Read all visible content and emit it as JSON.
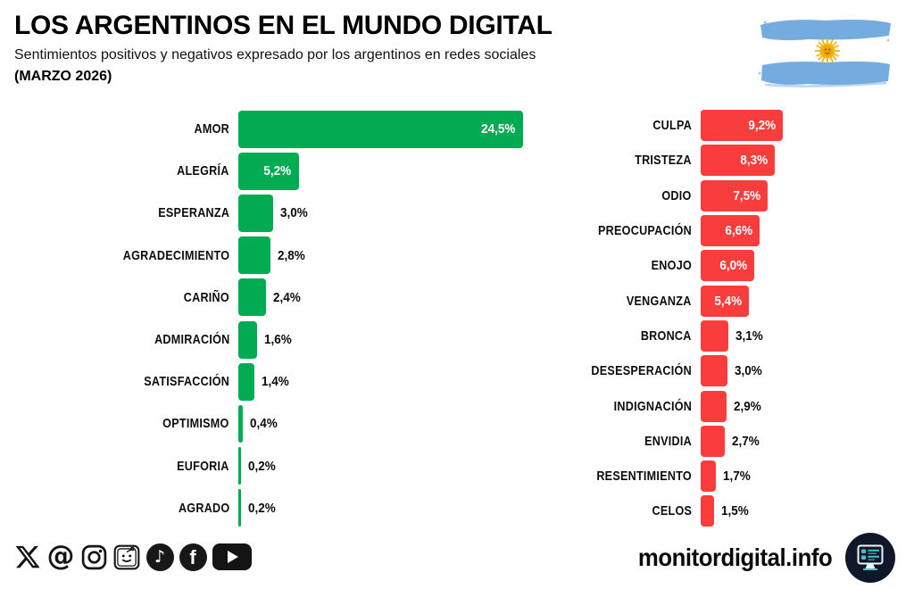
{
  "header": {
    "title": "LOS ARGENTINOS EN EL MUNDO DIGITAL",
    "subtitle": "Sentimientos positivos y negativos expresado por los argentinos en redes sociales",
    "period": "(MARZO 2026)"
  },
  "flag": {
    "name": "argentina-flag",
    "colors": {
      "celeste": "#74ACDF",
      "sun": "#F5B50F"
    }
  },
  "chart_data": [
    {
      "type": "bar",
      "orientation": "horizontal",
      "series_name": "Sentimientos positivos",
      "color": "#00AB52",
      "categories": [
        "AMOR",
        "ALEGRÍA",
        "ESPERANZA",
        "AGRADECIMIENTO",
        "CARIÑO",
        "ADMIRACIÓN",
        "SATISFACCIÓN",
        "OPTIMISMO",
        "EUFORIA",
        "AGRADO"
      ],
      "values": [
        24.5,
        5.2,
        3.0,
        2.8,
        2.4,
        1.6,
        1.4,
        0.4,
        0.2,
        0.2
      ],
      "value_labels": [
        "24,5%",
        "5,2%",
        "3,0%",
        "2,8%",
        "2,4%",
        "1,6%",
        "1,4%",
        "0,4%",
        "0,2%",
        "0,2%"
      ],
      "value_suffix": "%",
      "xlim": [
        0,
        24.5
      ],
      "grid": false,
      "value_label_position": "inside-if-fits"
    },
    {
      "type": "bar",
      "orientation": "horizontal",
      "series_name": "Sentimientos negativos",
      "color": "#F93C3C",
      "categories": [
        "CULPA",
        "TRISTEZA",
        "ODIO",
        "PREOCUPACIÓN",
        "ENOJO",
        "VENGANZA",
        "BRONCA",
        "DESESPERACIÓN",
        "INDIGNACIÓN",
        "ENVIDIA",
        "RESENTIMIENTO",
        "CELOS"
      ],
      "values": [
        9.2,
        8.3,
        7.5,
        6.6,
        6.0,
        5.4,
        3.1,
        3.0,
        2.9,
        2.7,
        1.7,
        1.5
      ],
      "value_labels": [
        "9,2%",
        "8,3%",
        "7,5%",
        "6,6%",
        "6,0%",
        "5,4%",
        "3,1%",
        "3,0%",
        "2,9%",
        "2,7%",
        "1,7%",
        "1,5%"
      ],
      "value_suffix": "%",
      "xlim": [
        0,
        9.3
      ],
      "grid": false,
      "value_label_position": "inside-if-fits"
    }
  ],
  "footer": {
    "brand": "monitordigital.info",
    "logo": "monitor-dashboard-logo",
    "social": [
      {
        "name": "x-icon",
        "glyph": "X"
      },
      {
        "name": "threads-icon",
        "glyph": "@"
      },
      {
        "name": "instagram-icon",
        "glyph": "camera"
      },
      {
        "name": "reddit-icon",
        "glyph": "robot-face"
      },
      {
        "name": "tiktok-icon",
        "glyph": "♪"
      },
      {
        "name": "facebook-icon",
        "glyph": "f"
      },
      {
        "name": "youtube-icon",
        "glyph": "play"
      }
    ]
  }
}
